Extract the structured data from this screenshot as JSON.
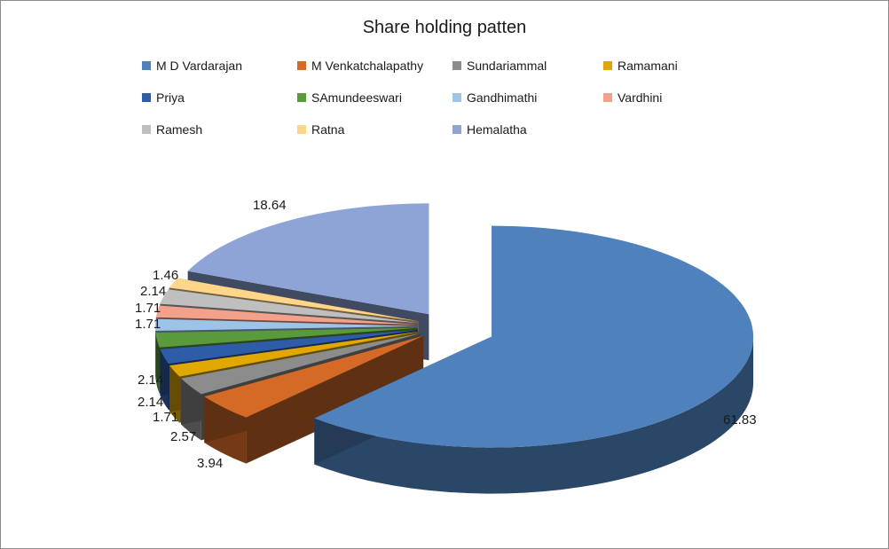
{
  "chart_data": {
    "type": "pie",
    "title": "Share holding patten",
    "legend_placement": "top",
    "series": [
      {
        "name": "M D Vardarajan",
        "value": 61.83,
        "color": "#4F81BD"
      },
      {
        "name": "M Venkatchalapathy",
        "value": 3.94,
        "color": "#D46A26"
      },
      {
        "name": "Sundariammal",
        "value": 2.57,
        "color": "#8C8C8C"
      },
      {
        "name": "Ramamani",
        "value": 1.71,
        "color": "#E0A800"
      },
      {
        "name": "Priya",
        "value": 2.14,
        "color": "#2E5CA8"
      },
      {
        "name": "SAmundeeswari",
        "value": 2.14,
        "color": "#5B9A3C"
      },
      {
        "name": "Gandhimathi",
        "value": 1.71,
        "color": "#9DC3E6"
      },
      {
        "name": "Vardhini",
        "value": 1.71,
        "color": "#F4A18C"
      },
      {
        "name": "Ramesh",
        "value": 2.14,
        "color": "#BFBFBF"
      },
      {
        "name": "Ratna",
        "value": 1.46,
        "color": "#FFD58A"
      },
      {
        "name": "Hemalatha",
        "value": 18.64,
        "color": "#8EA4D6"
      }
    ]
  }
}
